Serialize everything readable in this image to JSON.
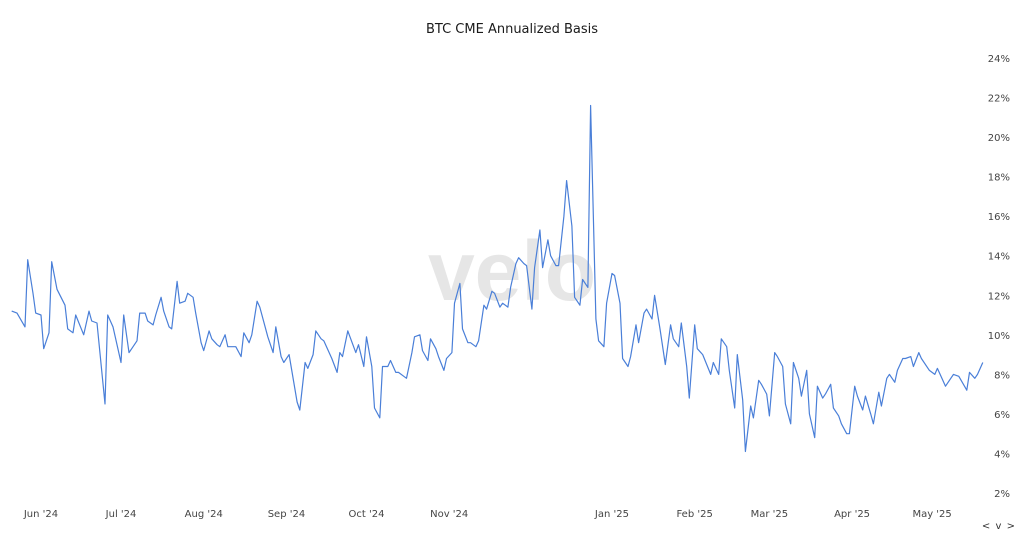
{
  "chart_data": {
    "type": "line",
    "title": "BTC CME Annualized Basis",
    "xlabel": "",
    "ylabel": "",
    "y_axis_position": "right",
    "y_tick_format": "percent",
    "ylim": [
      2,
      24
    ],
    "y_ticks": [
      "2%",
      "4%",
      "6%",
      "8%",
      "10%",
      "12%",
      "14%",
      "16%",
      "18%",
      "20%",
      "22%",
      "24%"
    ],
    "x_ticks": [
      {
        "date": "2024-06-01",
        "label": "Jun '24"
      },
      {
        "date": "2024-07-01",
        "label": "Jul '24"
      },
      {
        "date": "2024-08-01",
        "label": "Aug '24"
      },
      {
        "date": "2024-09-01",
        "label": "Sep '24"
      },
      {
        "date": "2024-10-01",
        "label": "Oct '24"
      },
      {
        "date": "2024-11-01",
        "label": "Nov '24"
      },
      {
        "date": "2025-01-01",
        "label": "Jan '25"
      },
      {
        "date": "2025-02-01",
        "label": "Feb '25"
      },
      {
        "date": "2025-03-01",
        "label": "Mar '25"
      },
      {
        "date": "2025-04-01",
        "label": "Apr '25"
      },
      {
        "date": "2025-05-01",
        "label": "May '25"
      }
    ],
    "grid": false,
    "legend": "none",
    "line_color": "#4a7fd8",
    "watermark": "velo",
    "series": [
      {
        "points": [
          [
            "2024-05-21",
            11.2
          ],
          [
            "2024-05-23",
            11.1
          ],
          [
            "2024-05-26",
            10.4
          ],
          [
            "2024-05-27",
            13.8
          ],
          [
            "2024-05-29",
            12.1
          ],
          [
            "2024-05-30",
            11.1
          ],
          [
            "2024-06-01",
            11.0
          ],
          [
            "2024-06-02",
            9.3
          ],
          [
            "2024-06-04",
            10.1
          ],
          [
            "2024-06-05",
            13.7
          ],
          [
            "2024-06-07",
            12.3
          ],
          [
            "2024-06-10",
            11.5
          ],
          [
            "2024-06-11",
            10.3
          ],
          [
            "2024-06-13",
            10.1
          ],
          [
            "2024-06-14",
            11.0
          ],
          [
            "2024-06-17",
            10.0
          ],
          [
            "2024-06-19",
            11.2
          ],
          [
            "2024-06-20",
            10.7
          ],
          [
            "2024-06-22",
            10.6
          ],
          [
            "2024-06-25",
            6.5
          ],
          [
            "2024-06-26",
            11.0
          ],
          [
            "2024-06-28",
            10.4
          ],
          [
            "2024-07-01",
            8.6
          ],
          [
            "2024-07-02",
            11.0
          ],
          [
            "2024-07-04",
            9.1
          ],
          [
            "2024-07-05",
            9.3
          ],
          [
            "2024-07-07",
            9.7
          ],
          [
            "2024-07-08",
            11.1
          ],
          [
            "2024-07-10",
            11.1
          ],
          [
            "2024-07-11",
            10.7
          ],
          [
            "2024-07-13",
            10.5
          ],
          [
            "2024-07-14",
            11.0
          ],
          [
            "2024-07-16",
            11.9
          ],
          [
            "2024-07-17",
            11.2
          ],
          [
            "2024-07-19",
            10.4
          ],
          [
            "2024-07-20",
            10.3
          ],
          [
            "2024-07-22",
            12.7
          ],
          [
            "2024-07-23",
            11.6
          ],
          [
            "2024-07-25",
            11.7
          ],
          [
            "2024-07-26",
            12.1
          ],
          [
            "2024-07-28",
            11.9
          ],
          [
            "2024-07-29",
            11.1
          ],
          [
            "2024-07-31",
            9.6
          ],
          [
            "2024-08-01",
            9.2
          ],
          [
            "2024-08-03",
            10.2
          ],
          [
            "2024-08-04",
            9.8
          ],
          [
            "2024-08-06",
            9.5
          ],
          [
            "2024-08-07",
            9.4
          ],
          [
            "2024-08-09",
            10.0
          ],
          [
            "2024-08-10",
            9.4
          ],
          [
            "2024-08-13",
            9.4
          ],
          [
            "2024-08-15",
            8.9
          ],
          [
            "2024-08-16",
            10.1
          ],
          [
            "2024-08-18",
            9.6
          ],
          [
            "2024-08-19",
            10.0
          ],
          [
            "2024-08-21",
            11.7
          ],
          [
            "2024-08-22",
            11.4
          ],
          [
            "2024-08-25",
            9.9
          ],
          [
            "2024-08-27",
            9.1
          ],
          [
            "2024-08-28",
            10.4
          ],
          [
            "2024-08-30",
            8.9
          ],
          [
            "2024-08-31",
            8.6
          ],
          [
            "2024-09-02",
            9.0
          ],
          [
            "2024-09-05",
            6.6
          ],
          [
            "2024-09-06",
            6.2
          ],
          [
            "2024-09-08",
            8.6
          ],
          [
            "2024-09-09",
            8.3
          ],
          [
            "2024-09-11",
            9.0
          ],
          [
            "2024-09-12",
            10.2
          ],
          [
            "2024-09-14",
            9.8
          ],
          [
            "2024-09-15",
            9.7
          ],
          [
            "2024-09-18",
            8.8
          ],
          [
            "2024-09-20",
            8.1
          ],
          [
            "2024-09-21",
            9.1
          ],
          [
            "2024-09-22",
            8.9
          ],
          [
            "2024-09-24",
            10.2
          ],
          [
            "2024-09-27",
            9.1
          ],
          [
            "2024-09-28",
            9.5
          ],
          [
            "2024-09-30",
            8.4
          ],
          [
            "2024-10-01",
            9.9
          ],
          [
            "2024-10-03",
            8.4
          ],
          [
            "2024-10-04",
            6.3
          ],
          [
            "2024-10-06",
            5.8
          ],
          [
            "2024-10-07",
            8.4
          ],
          [
            "2024-10-09",
            8.4
          ],
          [
            "2024-10-10",
            8.7
          ],
          [
            "2024-10-12",
            8.1
          ],
          [
            "2024-10-13",
            8.1
          ],
          [
            "2024-10-15",
            7.9
          ],
          [
            "2024-10-16",
            7.8
          ],
          [
            "2024-10-18",
            9.1
          ],
          [
            "2024-10-19",
            9.9
          ],
          [
            "2024-10-21",
            10.0
          ],
          [
            "2024-10-22",
            9.2
          ],
          [
            "2024-10-24",
            8.7
          ],
          [
            "2024-10-25",
            9.8
          ],
          [
            "2024-10-27",
            9.3
          ],
          [
            "2024-10-28",
            8.9
          ],
          [
            "2024-10-30",
            8.2
          ],
          [
            "2024-10-31",
            8.8
          ],
          [
            "2024-11-02",
            9.1
          ],
          [
            "2024-11-03",
            11.6
          ],
          [
            "2024-11-05",
            12.6
          ],
          [
            "2024-11-06",
            10.3
          ],
          [
            "2024-11-08",
            9.6
          ],
          [
            "2024-11-09",
            9.6
          ],
          [
            "2024-11-11",
            9.4
          ],
          [
            "2024-11-12",
            9.7
          ],
          [
            "2024-11-14",
            11.5
          ],
          [
            "2024-11-15",
            11.3
          ],
          [
            "2024-11-17",
            12.2
          ],
          [
            "2024-11-18",
            12.1
          ],
          [
            "2024-11-20",
            11.4
          ],
          [
            "2024-11-21",
            11.6
          ],
          [
            "2024-11-23",
            11.4
          ],
          [
            "2024-11-24",
            12.4
          ],
          [
            "2024-11-26",
            13.6
          ],
          [
            "2024-11-27",
            13.9
          ],
          [
            "2024-11-29",
            13.6
          ],
          [
            "2024-11-30",
            13.5
          ],
          [
            "2024-12-02",
            11.3
          ],
          [
            "2024-12-03",
            13.4
          ],
          [
            "2024-12-05",
            15.3
          ],
          [
            "2024-12-06",
            13.4
          ],
          [
            "2024-12-08",
            14.8
          ],
          [
            "2024-12-09",
            14.0
          ],
          [
            "2024-12-11",
            13.5
          ],
          [
            "2024-12-12",
            13.5
          ],
          [
            "2024-12-14",
            16.0
          ],
          [
            "2024-12-15",
            17.8
          ],
          [
            "2024-12-17",
            15.5
          ],
          [
            "2024-12-18",
            11.9
          ],
          [
            "2024-12-20",
            11.5
          ],
          [
            "2024-12-21",
            12.8
          ],
          [
            "2024-12-23",
            12.4
          ],
          [
            "2024-12-24",
            21.6
          ],
          [
            "2024-12-26",
            10.8
          ],
          [
            "2024-12-27",
            9.7
          ],
          [
            "2024-12-29",
            9.4
          ],
          [
            "2024-12-30",
            11.6
          ],
          [
            "2025-01-01",
            13.1
          ],
          [
            "2025-01-02",
            13.0
          ],
          [
            "2025-01-04",
            11.6
          ],
          [
            "2025-01-05",
            8.8
          ],
          [
            "2025-01-07",
            8.4
          ],
          [
            "2025-01-08",
            8.9
          ],
          [
            "2025-01-10",
            10.5
          ],
          [
            "2025-01-11",
            9.6
          ],
          [
            "2025-01-13",
            11.1
          ],
          [
            "2025-01-14",
            11.3
          ],
          [
            "2025-01-16",
            10.8
          ],
          [
            "2025-01-17",
            12.0
          ],
          [
            "2025-01-19",
            10.3
          ],
          [
            "2025-01-21",
            8.5
          ],
          [
            "2025-01-23",
            10.5
          ],
          [
            "2025-01-24",
            9.8
          ],
          [
            "2025-01-26",
            9.4
          ],
          [
            "2025-01-27",
            10.6
          ],
          [
            "2025-01-29",
            8.4
          ],
          [
            "2025-01-30",
            6.8
          ],
          [
            "2025-02-01",
            10.5
          ],
          [
            "2025-02-02",
            9.3
          ],
          [
            "2025-02-04",
            9.0
          ],
          [
            "2025-02-07",
            8.0
          ],
          [
            "2025-02-08",
            8.6
          ],
          [
            "2025-02-10",
            8.0
          ],
          [
            "2025-02-11",
            9.8
          ],
          [
            "2025-02-13",
            9.4
          ],
          [
            "2025-02-14",
            8.2
          ],
          [
            "2025-02-16",
            6.3
          ],
          [
            "2025-02-17",
            9.0
          ],
          [
            "2025-02-19",
            6.7
          ],
          [
            "2025-02-20",
            4.1
          ],
          [
            "2025-02-22",
            6.4
          ],
          [
            "2025-02-23",
            5.8
          ],
          [
            "2025-02-25",
            7.7
          ],
          [
            "2025-02-26",
            7.5
          ],
          [
            "2025-02-28",
            7.0
          ],
          [
            "2025-03-01",
            5.9
          ],
          [
            "2025-03-03",
            9.1
          ],
          [
            "2025-03-04",
            8.9
          ],
          [
            "2025-03-06",
            8.4
          ],
          [
            "2025-03-07",
            6.5
          ],
          [
            "2025-03-09",
            5.5
          ],
          [
            "2025-03-10",
            8.6
          ],
          [
            "2025-03-12",
            7.8
          ],
          [
            "2025-03-13",
            6.9
          ],
          [
            "2025-03-15",
            8.2
          ],
          [
            "2025-03-16",
            6.0
          ],
          [
            "2025-03-18",
            4.8
          ],
          [
            "2025-03-19",
            7.4
          ],
          [
            "2025-03-21",
            6.8
          ],
          [
            "2025-03-22",
            7.0
          ],
          [
            "2025-03-24",
            7.5
          ],
          [
            "2025-03-25",
            6.3
          ],
          [
            "2025-03-27",
            5.9
          ],
          [
            "2025-03-28",
            5.5
          ],
          [
            "2025-03-30",
            5.0
          ],
          [
            "2025-03-31",
            5.0
          ],
          [
            "2025-04-02",
            7.4
          ],
          [
            "2025-04-03",
            6.9
          ],
          [
            "2025-04-05",
            6.2
          ],
          [
            "2025-04-06",
            6.9
          ],
          [
            "2025-04-08",
            6.0
          ],
          [
            "2025-04-09",
            5.5
          ],
          [
            "2025-04-11",
            7.1
          ],
          [
            "2025-04-12",
            6.4
          ],
          [
            "2025-04-14",
            7.8
          ],
          [
            "2025-04-15",
            8.0
          ],
          [
            "2025-04-17",
            7.6
          ],
          [
            "2025-04-18",
            8.2
          ],
          [
            "2025-04-20",
            8.8
          ],
          [
            "2025-04-21",
            8.8
          ],
          [
            "2025-04-23",
            8.9
          ],
          [
            "2025-04-24",
            8.4
          ],
          [
            "2025-04-26",
            9.1
          ],
          [
            "2025-04-27",
            8.8
          ],
          [
            "2025-04-30",
            8.2
          ],
          [
            "2025-05-02",
            8.0
          ],
          [
            "2025-05-03",
            8.3
          ],
          [
            "2025-05-05",
            7.7
          ],
          [
            "2025-05-06",
            7.4
          ],
          [
            "2025-05-08",
            7.8
          ],
          [
            "2025-05-09",
            8.0
          ],
          [
            "2025-05-11",
            7.9
          ],
          [
            "2025-05-14",
            7.2
          ],
          [
            "2025-05-15",
            8.1
          ],
          [
            "2025-05-17",
            7.8
          ],
          [
            "2025-05-18",
            8.0
          ],
          [
            "2025-05-20",
            8.6
          ]
        ]
      }
    ]
  },
  "nav": {
    "prev": "<",
    "menu": "v",
    "next": ">"
  }
}
